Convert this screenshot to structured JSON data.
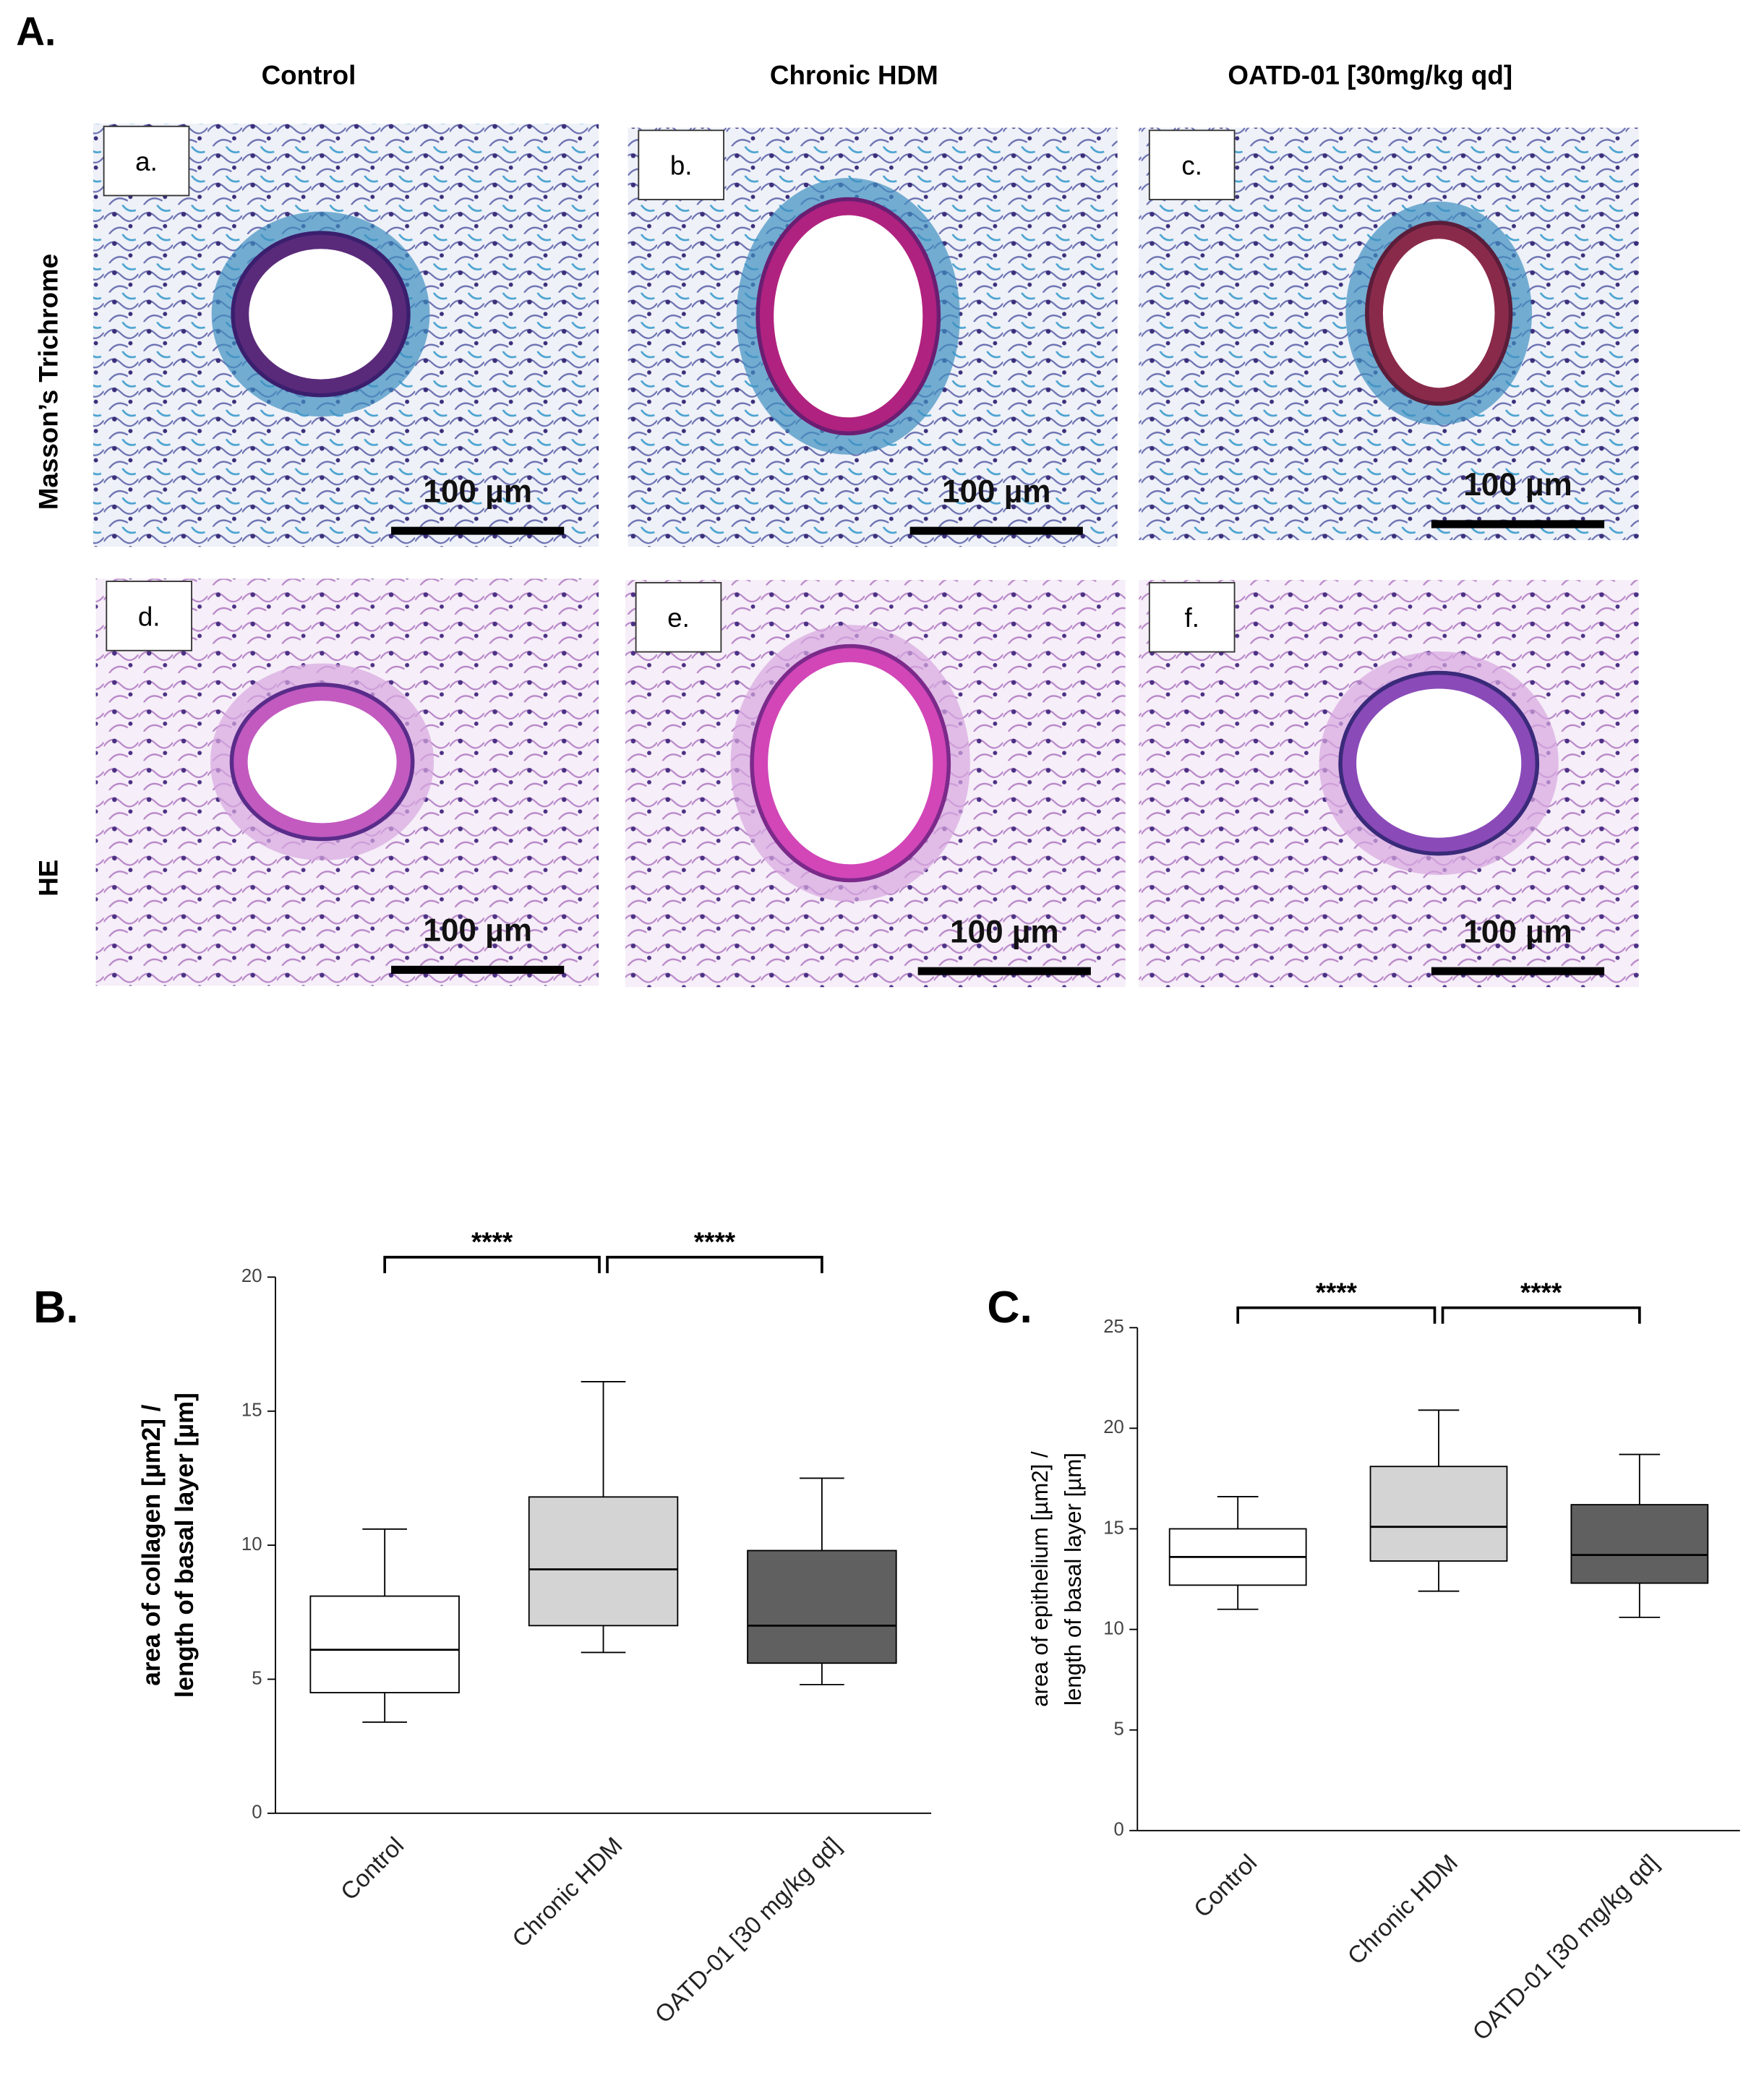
{
  "panel_a": {
    "label": "A.",
    "columns": [
      "Control",
      "Chronic HDM",
      "OATD-01 [30mg/kg qd]"
    ],
    "rows": [
      "Masson’s Trichrome",
      "HE"
    ],
    "images": [
      {
        "label": "a.",
        "scale_bar": "100 µm"
      },
      {
        "label": "b.",
        "scale_bar": "100 µm"
      },
      {
        "label": "c.",
        "scale_bar": "100 µm"
      },
      {
        "label": "d.",
        "scale_bar": "100 µm"
      },
      {
        "label": "e.",
        "scale_bar": "100 µm"
      },
      {
        "label": "f.",
        "scale_bar": "100 µm"
      }
    ]
  },
  "chart_data": [
    {
      "type": "box",
      "panel_label": "B.",
      "ylabel": [
        "area of collagen [µm2] /",
        "length of basal layer [µm]"
      ],
      "categories": [
        "Control",
        "Chronic HDM",
        "OATD-01 [30 mg/kg qd]"
      ],
      "values": [
        {
          "min": 3.4,
          "q1": 4.5,
          "median": 6.1,
          "q3": 8.1,
          "max": 10.6
        },
        {
          "min": 6.0,
          "q1": 7.0,
          "median": 9.1,
          "q3": 11.8,
          "max": 16.1
        },
        {
          "min": 4.8,
          "q1": 5.6,
          "median": 7.0,
          "q3": 9.8,
          "max": 12.5
        }
      ],
      "colors": [
        "#ffffff",
        "#d4d4d4",
        "#606060"
      ],
      "ylim": [
        0,
        20
      ],
      "yticks": [
        0,
        5,
        10,
        15,
        20
      ],
      "comparisons": [
        {
          "groups": [
            "Control",
            "Chronic HDM"
          ],
          "label": "****"
        },
        {
          "groups": [
            "Chronic HDM",
            "OATD-01 [30 mg/kg qd]"
          ],
          "label": "****"
        }
      ]
    },
    {
      "type": "box",
      "panel_label": "C.",
      "ylabel": [
        "area of epithelium [µm2] /",
        "length of basal layer [µm]"
      ],
      "categories": [
        "Control",
        "Chronic HDM",
        "OATD-01 [30 mg/kg qd]"
      ],
      "values": [
        {
          "min": 11.0,
          "q1": 12.2,
          "median": 13.6,
          "q3": 15.0,
          "max": 16.6
        },
        {
          "min": 11.9,
          "q1": 13.4,
          "median": 15.1,
          "q3": 18.1,
          "max": 20.9
        },
        {
          "min": 10.6,
          "q1": 12.3,
          "median": 13.7,
          "q3": 16.2,
          "max": 18.7
        }
      ],
      "colors": [
        "#ffffff",
        "#d4d4d4",
        "#606060"
      ],
      "ylim": [
        0,
        25
      ],
      "yticks": [
        0,
        5,
        10,
        15,
        20,
        25
      ],
      "comparisons": [
        {
          "groups": [
            "Control",
            "Chronic HDM"
          ],
          "label": "****"
        },
        {
          "groups": [
            "Chronic HDM",
            "OATD-01 [30 mg/kg qd]"
          ],
          "label": "****"
        }
      ]
    }
  ]
}
